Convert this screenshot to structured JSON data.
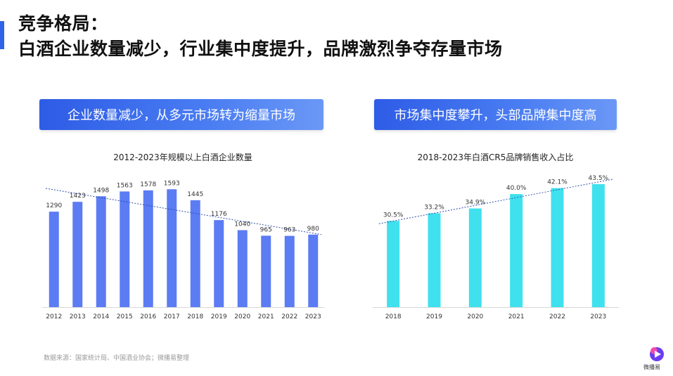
{
  "header": {
    "title_line1": "竞争格局：",
    "title_line2": "白酒企业数量减少，行业集中度提升，品牌激烈争夺存量市场"
  },
  "banners": {
    "left": "企业数量减少，从多元市场转为缩量市场",
    "right": "市场集中度攀升，头部品牌集中度高"
  },
  "footer": {
    "source": "数据来源：国家统计局、中国酒业协会；微播易整理",
    "logo_text": "微播易"
  },
  "colors": {
    "accent": "#2f63e8",
    "bar_blue": "#5b7cf3",
    "bar_cyan": "#3fe1ee",
    "trend": "#2c4fa8"
  },
  "chart_data": [
    {
      "type": "bar",
      "title": "2012-2023年规模以上白酒企业数量",
      "categories": [
        "2012",
        "2013",
        "2014",
        "2015",
        "2016",
        "2017",
        "2018",
        "2019",
        "2020",
        "2021",
        "2022",
        "2023"
      ],
      "values": [
        1290,
        1423,
        1498,
        1563,
        1578,
        1593,
        1445,
        1176,
        1040,
        965,
        963,
        980
      ],
      "labels": [
        "1290",
        "1423",
        "1498",
        "1563",
        "1578",
        "1593",
        "1445",
        "1176",
        "1040",
        "965",
        "963",
        "980"
      ],
      "ylim": [
        0,
        1700
      ],
      "trendline": true,
      "grid": false,
      "xlabel": "",
      "ylabel": ""
    },
    {
      "type": "bar",
      "title": "2018-2023年白酒CR5品牌销售收入占比",
      "categories": [
        "2018",
        "2019",
        "2020",
        "2021",
        "2022",
        "2023"
      ],
      "values": [
        30.5,
        33.2,
        34.9,
        40.0,
        42.1,
        43.5
      ],
      "labels": [
        "30.5%",
        "33.2%",
        "34.9%",
        "40.0%",
        "42.1%",
        "43.5%"
      ],
      "ylim": [
        0,
        44.5
      ],
      "trendline": true,
      "grid": false,
      "xlabel": "",
      "ylabel": ""
    }
  ]
}
